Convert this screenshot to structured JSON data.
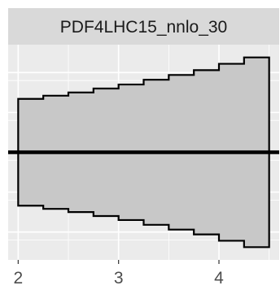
{
  "chart_data": {
    "type": "area",
    "facet_label": "PDF4LHC15_nnlo_30",
    "xlabel": "",
    "ylabel": "",
    "xlim": [
      1.9,
      4.6
    ],
    "ylim": [
      -1.35,
      1.35
    ],
    "x_ticks": [
      2,
      3,
      4
    ],
    "x_tick_labels": [
      "2",
      "3",
      "4"
    ],
    "grid": true,
    "center_value": 0,
    "bin_edges": [
      2.0,
      2.25,
      2.5,
      2.75,
      3.0,
      3.25,
      3.5,
      3.75,
      4.0,
      4.25,
      4.5
    ],
    "upper": [
      0.67,
      0.71,
      0.75,
      0.8,
      0.85,
      0.91,
      0.97,
      1.03,
      1.11,
      1.19
    ],
    "lower": [
      -0.67,
      -0.71,
      -0.75,
      -0.8,
      -0.85,
      -0.91,
      -0.97,
      -1.03,
      -1.11,
      -1.19
    ]
  }
}
